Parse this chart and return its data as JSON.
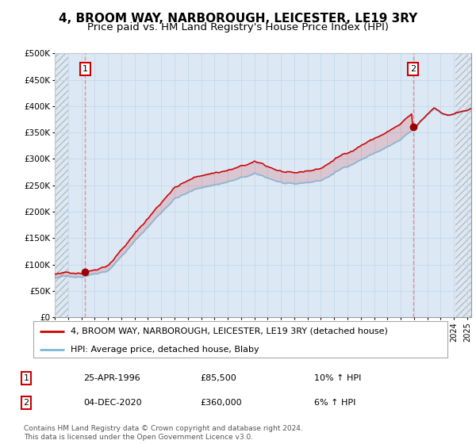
{
  "title": "4, BROOM WAY, NARBOROUGH, LEICESTER, LE19 3RY",
  "subtitle": "Price paid vs. HM Land Registry's House Price Index (HPI)",
  "legend_line1": "4, BROOM WAY, NARBOROUGH, LEICESTER, LE19 3RY (detached house)",
  "legend_line2": "HPI: Average price, detached house, Blaby",
  "note1_label": "1",
  "note1_date": "25-APR-1996",
  "note1_price": "£85,500",
  "note1_hpi": "10% ↑ HPI",
  "note2_label": "2",
  "note2_date": "04-DEC-2020",
  "note2_price": "£360,000",
  "note2_hpi": "6% ↑ HPI",
  "footer": "Contains HM Land Registry data © Crown copyright and database right 2024.\nThis data is licensed under the Open Government Licence v3.0.",
  "sale1_year": 1996.29,
  "sale1_price": 85500,
  "sale2_year": 2020.92,
  "sale2_price": 360000,
  "hpi_line_color": "#7ab8d9",
  "red_line_color": "#cc0000",
  "dot_color": "#990000",
  "annotation_box_color": "#cc0000",
  "background_color": "#ffffff",
  "plot_bg_color": "#dce9f5",
  "hatch_color": "#aaaaaa",
  "ylim": [
    0,
    500000
  ],
  "grid_color": "#c5d8ea",
  "title_fontsize": 11,
  "subtitle_fontsize": 9.5,
  "xmin": 1994.0,
  "xmax": 2025.3
}
